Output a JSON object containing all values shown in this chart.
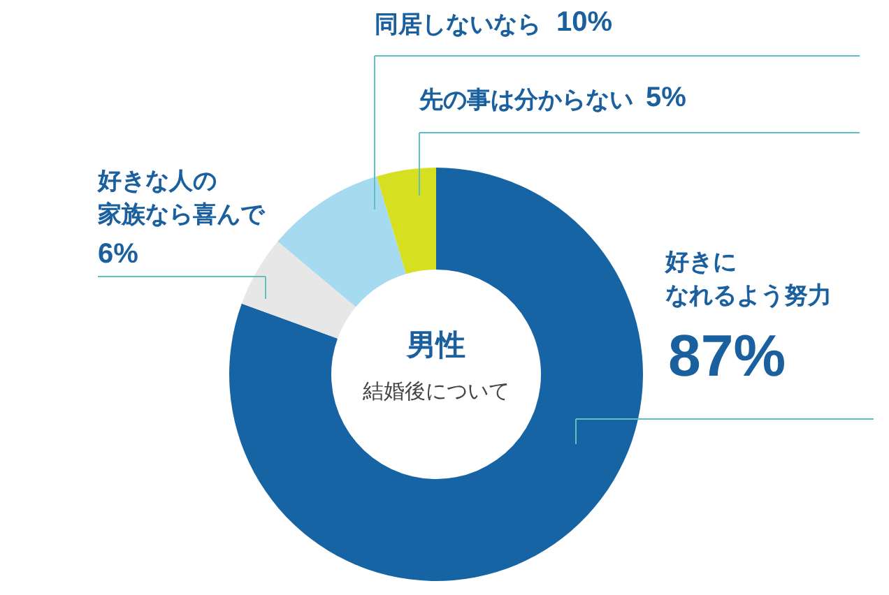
{
  "chart_data": {
    "type": "donut",
    "title": "男性",
    "subtitle": "結婚後について",
    "categories": [
      "好きになれるよう努力",
      "好きな人の家族なら喜んで",
      "同居しないなら",
      "先の事は分からない"
    ],
    "values": [
      87,
      6,
      10,
      5
    ],
    "colors": [
      "#1664a3",
      "#e7e7e7",
      "#a6daf0",
      "#d6e021"
    ],
    "value_labels": [
      "87%",
      "6%",
      "10%",
      "5%"
    ]
  }
}
